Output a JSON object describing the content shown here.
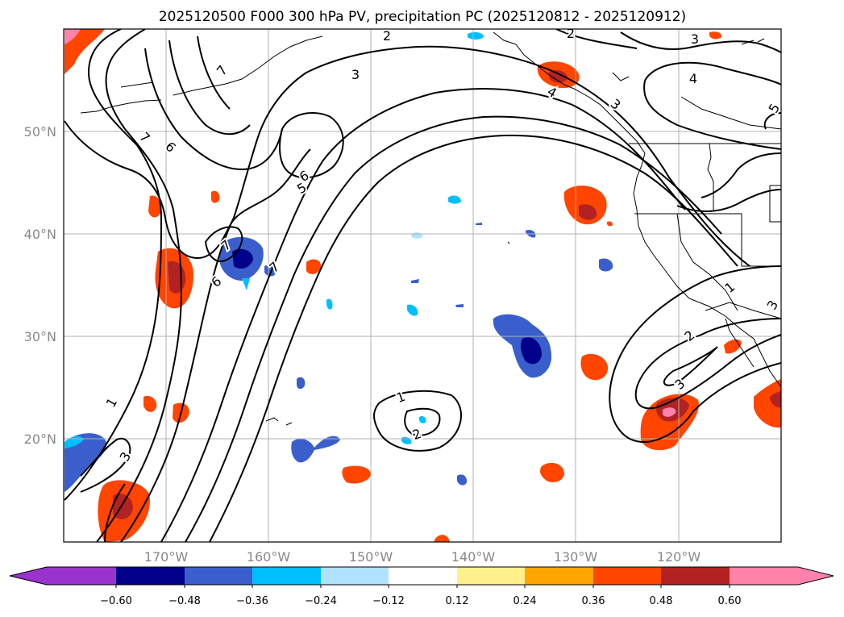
{
  "map": {
    "title": "2025120500 F000 300 hPa PV, precipitation PC (2025120812 - 2025120912)",
    "lat_ticks": [
      "50°N",
      "40°N",
      "30°N",
      "20°N"
    ],
    "lon_ticks": [
      "170°W",
      "160°W",
      "150°W",
      "140°W",
      "130°W",
      "120°W"
    ],
    "contour_labels": [
      "1",
      "2",
      "3",
      "4",
      "5",
      "6",
      "7"
    ],
    "colorbar": {
      "ticks": [
        "−0.60",
        "−0.48",
        "−0.36",
        "−0.24",
        "−0.12",
        "0.12",
        "0.24",
        "0.36",
        "0.48",
        "0.60"
      ],
      "colors": [
        "#9a32cd",
        "#00008b",
        "#3a5fcd",
        "#00bfff",
        "#b0e2ff",
        "#ffffff",
        "#fff08c",
        "#ffa500",
        "#ff4500",
        "#b22222",
        "#ff82ab",
        "#ff82ab"
      ]
    }
  }
}
